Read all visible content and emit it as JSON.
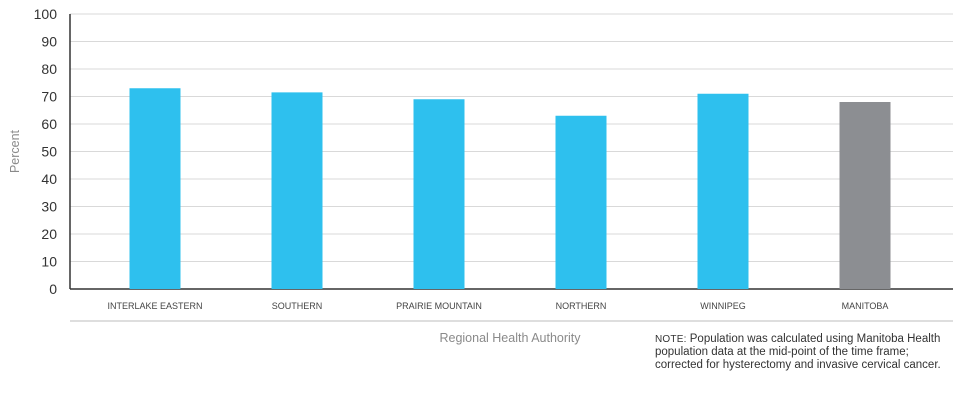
{
  "chart_data": {
    "type": "bar",
    "categories": [
      "INTERLAKE EASTERN",
      "SOUTHERN",
      "PRAIRIE MOUNTAIN",
      "NORTHERN",
      "WINNIPEG",
      "MANITOBA"
    ],
    "values": [
      73,
      71.5,
      69,
      63,
      71,
      68
    ],
    "colors": [
      "#2ec0ee",
      "#2ec0ee",
      "#2ec0ee",
      "#2ec0ee",
      "#2ec0ee",
      "#8c8e92"
    ],
    "title": "",
    "xlabel": "Regional Health Authority",
    "ylabel": "Percent",
    "ylim": [
      0,
      100
    ],
    "yticks": [
      "0",
      "10",
      "20",
      "30",
      "40",
      "50",
      "60",
      "70",
      "80",
      "90",
      "100"
    ],
    "grid": true
  },
  "note": {
    "prefix": "NOTE:",
    "text": "Population was calculated using Manitoba Health population data at the mid-point of the time frame; corrected for hysterectomy and invasive cervical cancer."
  }
}
